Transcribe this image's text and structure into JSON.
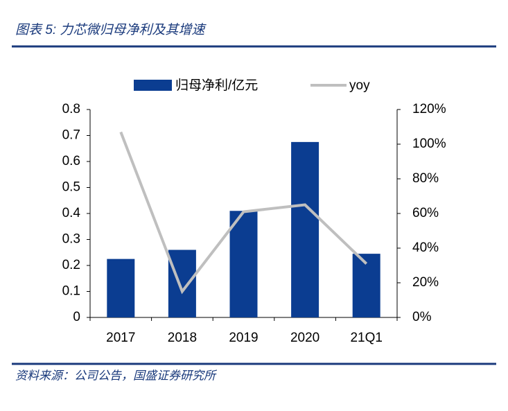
{
  "chart_data": {
    "type": "bar",
    "title": "图表 5:  力芯微归母净利及其增速",
    "source": "资料来源：公司公告，国盛证券研究所",
    "categories": [
      "2017",
      "2018",
      "2019",
      "2020",
      "21Q1"
    ],
    "series": [
      {
        "name": "归母净利/亿元",
        "type": "bar",
        "color": "#0b3d91",
        "values": [
          0.225,
          0.26,
          0.41,
          0.675,
          0.245
        ]
      },
      {
        "name": "yoy",
        "type": "line",
        "axis": "y2",
        "color": "#bfbfbf",
        "values": [
          107,
          15,
          61,
          65,
          31
        ]
      }
    ],
    "ylim": [
      0,
      0.8
    ],
    "yticks": [
      0,
      0.1,
      0.2,
      0.3,
      0.4,
      0.5,
      0.6,
      0.7,
      0.8
    ],
    "y2lim": [
      0,
      120
    ],
    "y2ticks": [
      {
        "value": 0,
        "label": "0%"
      },
      {
        "value": 20,
        "label": "20%"
      },
      {
        "value": 40,
        "label": "40%"
      },
      {
        "value": 60,
        "label": "60%"
      },
      {
        "value": 80,
        "label": "80%"
      },
      {
        "value": 100,
        "label": "100%"
      },
      {
        "value": 120,
        "label": "120%"
      }
    ],
    "grid": false,
    "legend": "top"
  }
}
